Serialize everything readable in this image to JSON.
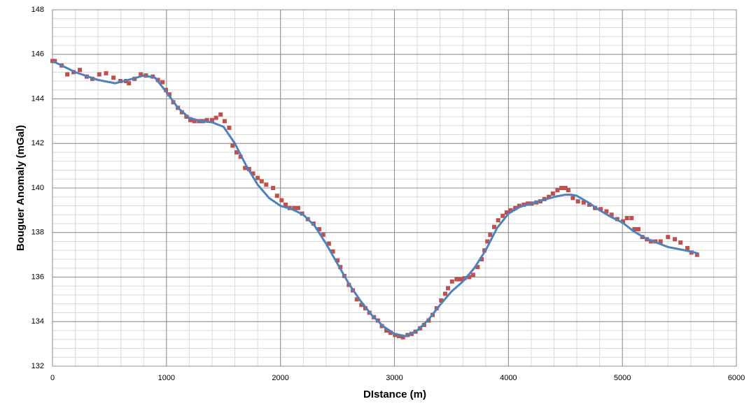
{
  "chart_data": {
    "type": "scatter",
    "x_label": "DIstance (m)",
    "y_label": "Bouguer Anomaly (mGal)",
    "xlim": [
      0,
      6000
    ],
    "ylim": [
      132,
      148
    ],
    "xticks": [
      0,
      1000,
      2000,
      3000,
      4000,
      5000,
      6000
    ],
    "yticks": [
      132,
      134,
      136,
      138,
      140,
      142,
      144,
      146,
      148
    ],
    "grid": true,
    "minor_grid": {
      "x": 200,
      "y": 0.4
    },
    "series": [
      {
        "kind": "scatter",
        "color": "#c0504d",
        "x": [
          0,
          20,
          80,
          130,
          185,
          240,
          300,
          350,
          410,
          470,
          535,
          595,
          645,
          670,
          720,
          775,
          820,
          880,
          925,
          965,
          995,
          1025,
          1060,
          1100,
          1135,
          1175,
          1210,
          1245,
          1285,
          1320,
          1355,
          1400,
          1435,
          1475,
          1510,
          1550,
          1580,
          1615,
          1650,
          1690,
          1725,
          1760,
          1800,
          1835,
          1875,
          1935,
          1970,
          2010,
          2045,
          2080,
          2120,
          2155,
          2190,
          2240,
          2290,
          2340,
          2375,
          2425,
          2460,
          2500,
          2525,
          2560,
          2600,
          2635,
          2670,
          2710,
          2745,
          2780,
          2820,
          2855,
          2890,
          2930,
          2965,
          3005,
          3040,
          3075,
          3115,
          3150,
          3185,
          3225,
          3260,
          3300,
          3335,
          3370,
          3410,
          3445,
          3470,
          3505,
          3545,
          3580,
          3615,
          3655,
          3690,
          3730,
          3765,
          3790,
          3815,
          3840,
          3875,
          3910,
          3950,
          3985,
          4020,
          4060,
          4095,
          4135,
          4170,
          4205,
          4245,
          4280,
          4315,
          4355,
          4390,
          4430,
          4465,
          4500,
          4525,
          4565,
          4610,
          4660,
          4710,
          4760,
          4810,
          4860,
          4905,
          4955,
          5005,
          5040,
          5080,
          5105,
          5140,
          5175,
          5215,
          5250,
          5290,
          5335,
          5400,
          5460,
          5510,
          5570,
          5605,
          5655
        ],
        "values": [
          145.7,
          145.7,
          145.5,
          145.1,
          145.2,
          145.3,
          145.0,
          144.9,
          145.1,
          145.15,
          144.95,
          144.8,
          144.8,
          144.7,
          144.9,
          145.1,
          145.05,
          145.0,
          144.85,
          144.75,
          144.4,
          144.2,
          143.85,
          143.6,
          143.4,
          143.2,
          143.05,
          143.0,
          143.0,
          143.0,
          143.05,
          143.05,
          143.15,
          143.3,
          143.0,
          142.7,
          141.9,
          141.6,
          141.4,
          140.9,
          140.85,
          140.65,
          140.45,
          140.3,
          140.15,
          140.0,
          139.65,
          139.45,
          139.25,
          139.1,
          139.1,
          139.1,
          138.85,
          138.6,
          138.4,
          138.15,
          137.9,
          137.5,
          137.15,
          136.75,
          136.45,
          136.05,
          135.65,
          135.4,
          135.0,
          134.75,
          134.6,
          134.4,
          134.2,
          134.05,
          133.8,
          133.6,
          133.5,
          133.4,
          133.35,
          133.3,
          133.4,
          133.45,
          133.55,
          133.7,
          133.85,
          134.05,
          134.3,
          134.6,
          134.95,
          135.25,
          135.5,
          135.8,
          135.9,
          135.9,
          135.95,
          136.0,
          136.1,
          136.45,
          136.8,
          137.2,
          137.6,
          137.9,
          138.25,
          138.55,
          138.75,
          138.9,
          139.0,
          139.1,
          139.2,
          139.25,
          139.3,
          139.3,
          139.35,
          139.4,
          139.5,
          139.6,
          139.75,
          139.9,
          140.0,
          140.0,
          139.9,
          139.55,
          139.4,
          139.35,
          139.25,
          139.1,
          139.05,
          138.95,
          138.8,
          138.6,
          138.5,
          138.65,
          138.65,
          138.15,
          138.15,
          137.8,
          137.7,
          137.6,
          137.6,
          137.6,
          137.8,
          137.7,
          137.55,
          137.3,
          137.1,
          137.0
        ]
      },
      {
        "kind": "line",
        "color": "#4f81bd",
        "x": [
          0,
          200,
          400,
          550,
          700,
          800,
          900,
          1000,
          1100,
          1200,
          1300,
          1400,
          1500,
          1600,
          1700,
          1800,
          1900,
          2000,
          2100,
          2200,
          2300,
          2400,
          2500,
          2600,
          2700,
          2800,
          2900,
          3000,
          3100,
          3200,
          3300,
          3400,
          3500,
          3600,
          3700,
          3800,
          3900,
          4000,
          4100,
          4200,
          4300,
          4400,
          4500,
          4550,
          4600,
          4700,
          4800,
          4900,
          5000,
          5100,
          5200,
          5300,
          5400,
          5500,
          5600,
          5670
        ],
        "values": [
          145.7,
          145.2,
          144.85,
          144.7,
          144.9,
          145.05,
          144.95,
          144.3,
          143.6,
          143.15,
          143.0,
          142.95,
          142.75,
          142.0,
          141.0,
          140.15,
          139.55,
          139.2,
          139.05,
          138.8,
          138.3,
          137.5,
          136.6,
          135.7,
          134.95,
          134.3,
          133.8,
          133.45,
          133.35,
          133.6,
          134.1,
          134.75,
          135.35,
          135.8,
          136.4,
          137.2,
          138.2,
          138.85,
          139.15,
          139.3,
          139.45,
          139.6,
          139.7,
          139.7,
          139.65,
          139.35,
          139.0,
          138.7,
          138.45,
          138.05,
          137.75,
          137.55,
          137.35,
          137.25,
          137.15,
          137.05
        ]
      }
    ]
  }
}
